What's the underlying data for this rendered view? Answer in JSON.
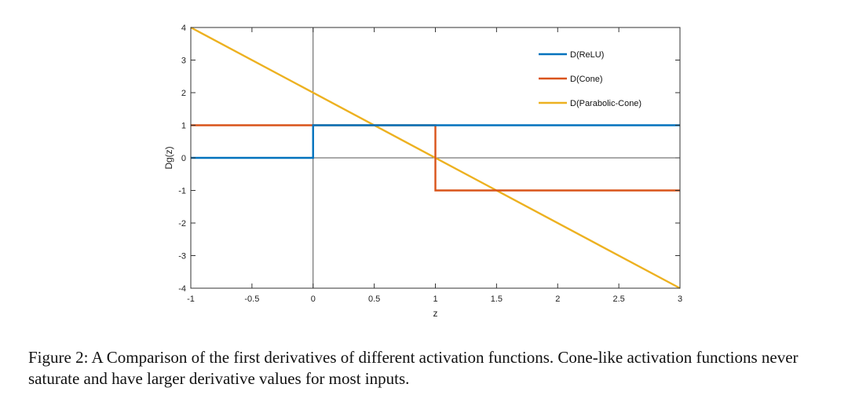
{
  "chart_data": {
    "type": "line",
    "title": "",
    "xlabel": "z",
    "ylabel": "Dg(z)",
    "xlim": [
      -1,
      3
    ],
    "ylim": [
      -4,
      4
    ],
    "xticks": [
      -1,
      -0.5,
      0,
      0.5,
      1,
      1.5,
      2,
      2.5,
      3
    ],
    "xtick_labels": [
      "-1",
      "-0.5",
      "0",
      "0.5",
      "1",
      "1.5",
      "2",
      "2.5",
      "3"
    ],
    "yticks": [
      4,
      3,
      2,
      1,
      0,
      -1,
      -2,
      -3,
      -4
    ],
    "ytick_labels": [
      "4",
      "3",
      "2",
      "1",
      "0",
      "-1",
      "-2",
      "-3",
      "-4"
    ],
    "grid": false,
    "legend_position": "top-right",
    "reference_lines": {
      "x0": true,
      "y0": true
    },
    "series": [
      {
        "name": "D(ReLU)",
        "color": "#0072BD",
        "x": [
          -1,
          0,
          0,
          3
        ],
        "y": [
          0,
          0,
          1,
          1
        ]
      },
      {
        "name": "D(Cone)",
        "color": "#D95319",
        "x": [
          -1,
          1,
          1,
          3
        ],
        "y": [
          1,
          1,
          -1,
          -1
        ]
      },
      {
        "name": "D(Parabolic-Cone)",
        "color": "#EDB120",
        "x": [
          -1,
          3
        ],
        "y": [
          4,
          -4
        ]
      }
    ]
  },
  "caption": "Figure 2: A Comparison of the first derivatives of different activation functions. Cone-like activation functions never saturate and have larger derivative values for most inputs."
}
